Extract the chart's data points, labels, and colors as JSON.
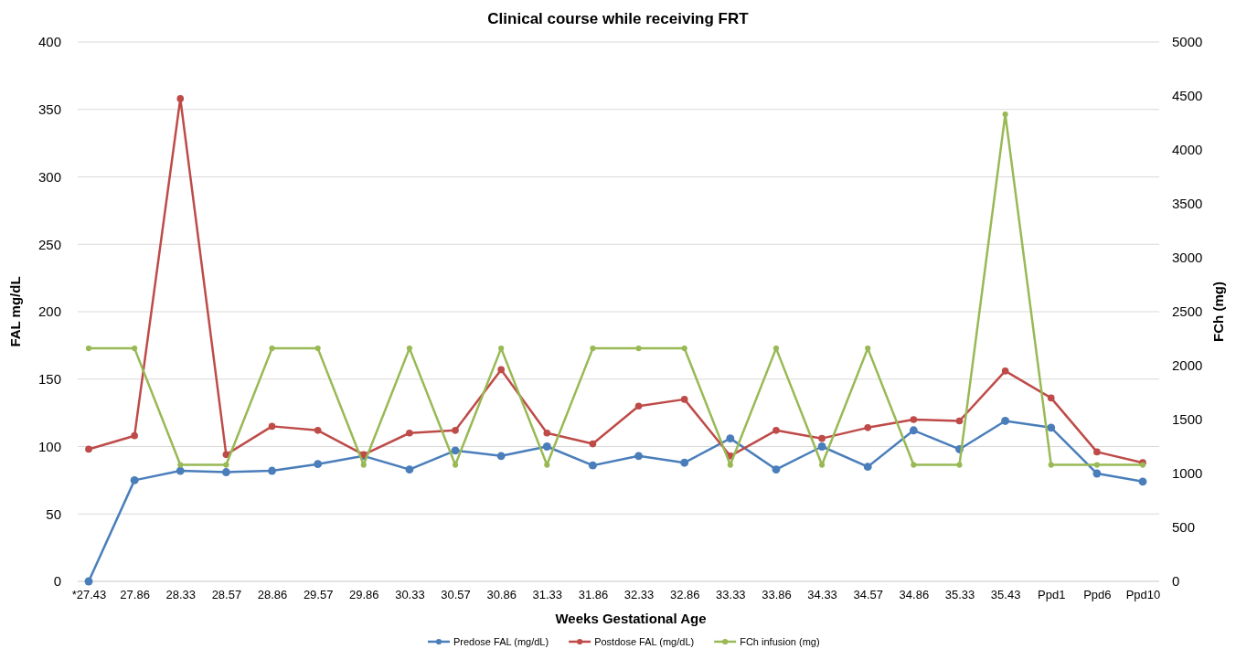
{
  "chart_data": {
    "type": "line",
    "title": "Clinical course while receiving FRT",
    "xlabel": "Weeks Gestational Age",
    "ylabel": "FAL mg/dL",
    "y2label": "FCh (mg)",
    "categories": [
      "*27.43",
      "27.86",
      "28.33",
      "28.57",
      "28.86",
      "29.57",
      "29.86",
      "30.33",
      "30.57",
      "30.86",
      "31.33",
      "31.86",
      "32.33",
      "32.86",
      "33.33",
      "33.86",
      "34.33",
      "34.57",
      "34.86",
      "35.33",
      "35.43",
      "Ppd1",
      "Ppd6",
      "Ppd10"
    ],
    "series": [
      {
        "name": "Predose FAL (mg/dL)",
        "color": "#4a7ebb",
        "values": [
          0,
          75,
          82,
          81,
          82,
          87,
          93,
          83,
          97,
          93,
          100,
          86,
          93,
          88,
          106,
          83,
          100,
          85,
          112,
          98,
          119,
          114,
          80,
          74
        ]
      },
      {
        "name": "Postdose FAL (mg/dL)",
        "color": "#be4b48",
        "values": [
          98,
          108,
          358,
          94,
          115,
          112,
          94,
          110,
          112,
          157,
          110,
          102,
          130,
          135,
          93,
          112,
          106,
          114,
          120,
          119,
          156,
          136,
          96,
          88
        ]
      },
      {
        "name": "FCh infusion (mg)",
        "color": "#98b954",
        "axis": "y2",
        "values": [
          2160,
          2160,
          1080,
          1080,
          2160,
          2160,
          1080,
          2160,
          1080,
          2160,
          1080,
          2160,
          2160,
          2160,
          1080,
          2160,
          1080,
          2160,
          1080,
          1080,
          4330,
          1080,
          1080,
          1080
        ]
      }
    ],
    "ylim": [
      0,
      400
    ],
    "yticks": [
      0,
      50,
      100,
      150,
      200,
      250,
      300,
      350,
      400
    ],
    "y2lim": [
      0,
      5000
    ],
    "y2ticks": [
      0,
      500,
      1000,
      1500,
      2000,
      2500,
      3000,
      3500,
      4000,
      4500,
      5000
    ],
    "grid": "y",
    "legend": "bottom",
    "marker": "circle",
    "line_style": "solid"
  }
}
